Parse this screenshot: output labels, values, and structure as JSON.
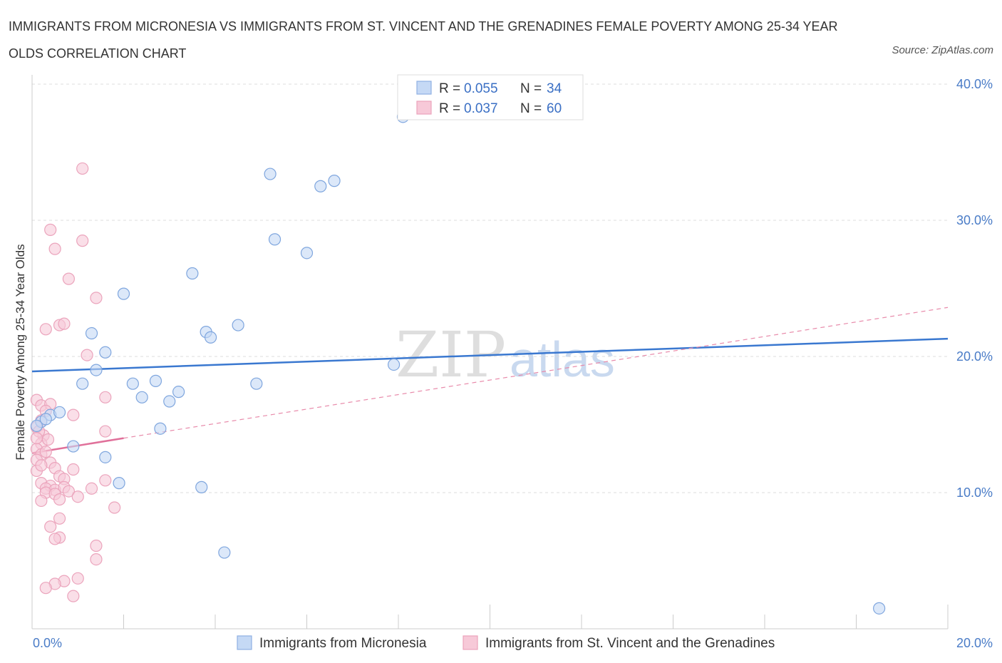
{
  "title": "IMMIGRANTS FROM MICRONESIA VS IMMIGRANTS FROM ST. VINCENT AND THE GRENADINES FEMALE POVERTY AMONG 25-34 YEAR OLDS CORRELATION CHART",
  "source": "Source: ZipAtlas.com",
  "watermark": {
    "zip": "ZIP",
    "atlas": "atlas"
  },
  "colors": {
    "blue": "#3a78d0",
    "pink": "#e0709a",
    "blue_fill": "#c5d9f5",
    "pink_fill": "#f7c9d8"
  },
  "chart_data": {
    "type": "scatter",
    "xlabel": "",
    "ylabel": "Female Poverty Among 25-34 Year Olds",
    "xlim": [
      0,
      20
    ],
    "ylim": [
      0,
      40
    ],
    "x_tick_labels": [
      "0.0%",
      "20.0%"
    ],
    "y_ticks": [
      10,
      20,
      30,
      40
    ],
    "y_tick_labels": [
      "10.0%",
      "20.0%",
      "30.0%",
      "40.0%"
    ],
    "legend_placement": "top-center",
    "legend": [
      {
        "r_label": "R = ",
        "r_value": "0.055",
        "n_label": "N = ",
        "n_value": "34"
      },
      {
        "r_label": "R = ",
        "r_value": "0.037",
        "n_label": "N = ",
        "n_value": "60"
      }
    ],
    "series": [
      {
        "name": "Immigrants from Micronesia",
        "color": "#3a78d0",
        "points": [
          [
            8.1,
            37.6
          ],
          [
            5.2,
            33.4
          ],
          [
            6.3,
            32.5
          ],
          [
            6.6,
            32.9
          ],
          [
            5.3,
            28.6
          ],
          [
            6.0,
            27.6
          ],
          [
            3.5,
            26.1
          ],
          [
            2.0,
            24.6
          ],
          [
            1.3,
            21.7
          ],
          [
            3.8,
            21.8
          ],
          [
            3.9,
            21.4
          ],
          [
            4.5,
            22.3
          ],
          [
            1.6,
            20.3
          ],
          [
            1.4,
            19.0
          ],
          [
            1.1,
            18.0
          ],
          [
            2.2,
            18.0
          ],
          [
            2.7,
            18.2
          ],
          [
            3.2,
            17.4
          ],
          [
            3.0,
            16.7
          ],
          [
            2.4,
            17.0
          ],
          [
            4.9,
            18.0
          ],
          [
            7.9,
            19.4
          ],
          [
            0.4,
            15.7
          ],
          [
            0.6,
            15.9
          ],
          [
            0.2,
            15.2
          ],
          [
            0.3,
            15.4
          ],
          [
            0.1,
            14.9
          ],
          [
            0.9,
            13.4
          ],
          [
            1.6,
            12.6
          ],
          [
            1.9,
            10.7
          ],
          [
            2.8,
            14.7
          ],
          [
            3.7,
            10.4
          ],
          [
            4.2,
            5.6
          ],
          [
            18.5,
            1.5
          ]
        ],
        "trend": {
          "x": [
            0,
            20
          ],
          "y": [
            18.9,
            21.3
          ]
        }
      },
      {
        "name": "Immigrants from St. Vincent and the Grenadines",
        "color": "#e0709a",
        "points": [
          [
            1.1,
            33.8
          ],
          [
            0.4,
            29.3
          ],
          [
            1.1,
            28.5
          ],
          [
            0.5,
            27.9
          ],
          [
            0.8,
            25.7
          ],
          [
            1.4,
            24.3
          ],
          [
            0.3,
            22.0
          ],
          [
            0.6,
            22.3
          ],
          [
            0.7,
            22.4
          ],
          [
            1.2,
            20.1
          ],
          [
            1.6,
            17.0
          ],
          [
            0.1,
            16.8
          ],
          [
            0.2,
            16.4
          ],
          [
            0.4,
            16.5
          ],
          [
            0.3,
            16.0
          ],
          [
            0.9,
            15.7
          ],
          [
            0.2,
            15.3
          ],
          [
            0.1,
            14.8
          ],
          [
            0.25,
            14.2
          ],
          [
            0.2,
            13.6
          ],
          [
            0.1,
            13.2
          ],
          [
            0.2,
            12.8
          ],
          [
            0.3,
            13.0
          ],
          [
            0.1,
            12.4
          ],
          [
            0.4,
            12.2
          ],
          [
            0.5,
            11.8
          ],
          [
            0.1,
            11.6
          ],
          [
            0.6,
            11.2
          ],
          [
            0.7,
            11.0
          ],
          [
            0.9,
            11.7
          ],
          [
            1.6,
            10.9
          ],
          [
            0.2,
            10.7
          ],
          [
            0.4,
            10.5
          ],
          [
            0.3,
            10.3
          ],
          [
            0.5,
            10.2
          ],
          [
            0.7,
            10.4
          ],
          [
            0.8,
            10.1
          ],
          [
            1.3,
            10.3
          ],
          [
            0.3,
            10.0
          ],
          [
            0.5,
            9.9
          ],
          [
            1.0,
            9.7
          ],
          [
            0.2,
            9.4
          ],
          [
            0.6,
            9.5
          ],
          [
            1.8,
            8.9
          ],
          [
            0.6,
            8.1
          ],
          [
            0.4,
            7.5
          ],
          [
            0.6,
            6.7
          ],
          [
            0.5,
            6.6
          ],
          [
            1.4,
            6.1
          ],
          [
            1.4,
            5.1
          ],
          [
            1.0,
            3.7
          ],
          [
            0.7,
            3.5
          ],
          [
            0.5,
            3.3
          ],
          [
            0.3,
            3.0
          ],
          [
            0.9,
            2.4
          ],
          [
            0.15,
            14.5
          ],
          [
            0.1,
            14.0
          ],
          [
            0.35,
            13.9
          ],
          [
            1.6,
            14.5
          ],
          [
            0.2,
            12.0
          ]
        ],
        "trend": {
          "x": [
            0,
            2
          ],
          "y": [
            12.9,
            14.0
          ]
        },
        "trend_dashed": {
          "x": [
            2,
            20
          ],
          "y": [
            14.0,
            23.6
          ]
        }
      }
    ]
  }
}
